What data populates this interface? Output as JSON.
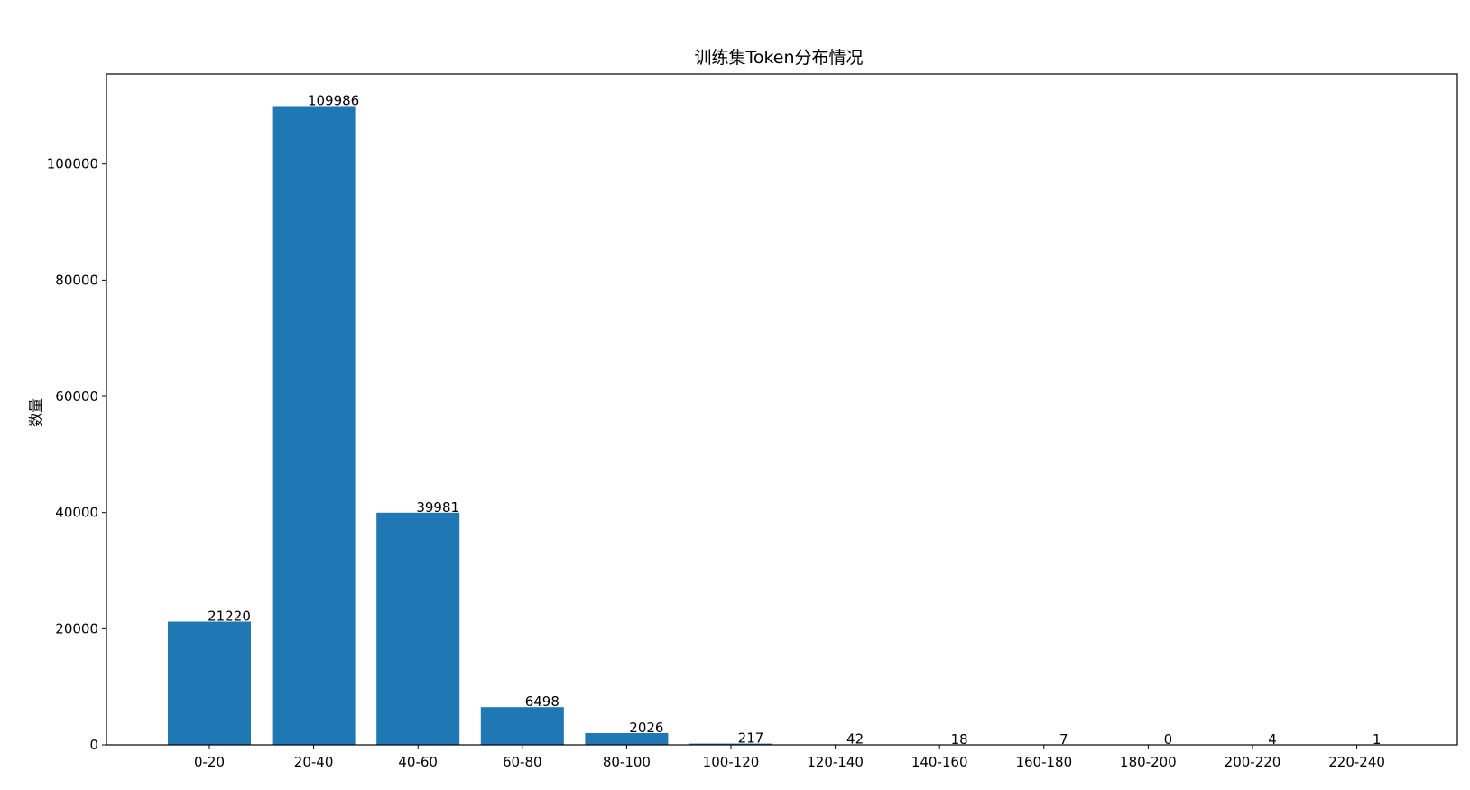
{
  "chart_data": {
    "type": "bar",
    "title": "训练集Token分布情况",
    "xlabel": "",
    "ylabel": "数量",
    "categories": [
      "0-20",
      "20-40",
      "40-60",
      "60-80",
      "80-100",
      "100-120",
      "120-140",
      "140-160",
      "160-180",
      "180-200",
      "200-220",
      "220-240"
    ],
    "values": [
      21220,
      109986,
      39981,
      6498,
      2026,
      217,
      42,
      18,
      7,
      0,
      4,
      1
    ],
    "ylim": [
      0,
      115500
    ],
    "yticks": [
      0,
      20000,
      40000,
      60000,
      80000,
      100000
    ],
    "grid": false,
    "bar_color": "#1f77b4"
  }
}
